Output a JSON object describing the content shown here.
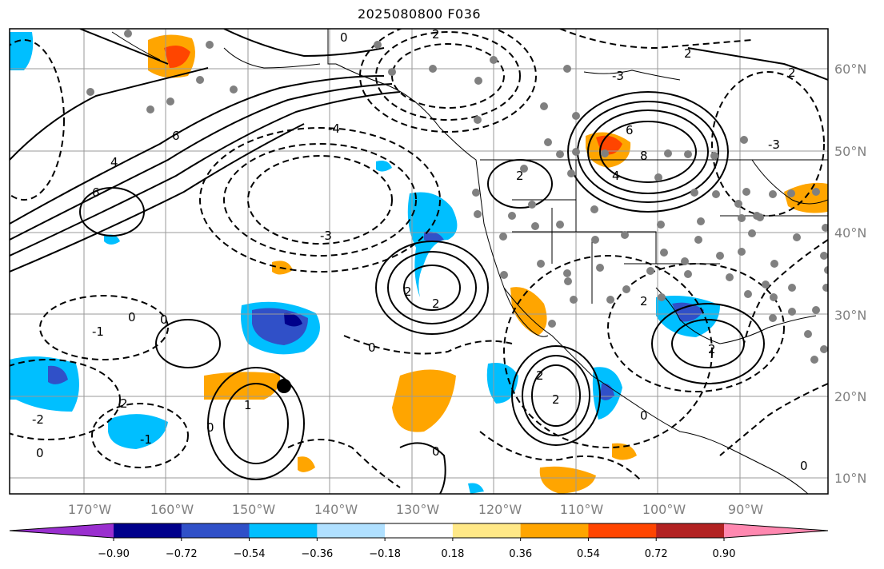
{
  "title": "2025080800 F036",
  "lon_labels": [
    "170°W",
    "160°W",
    "150°W",
    "140°W",
    "130°W",
    "120°W",
    "110°W",
    "100°W",
    "90°W"
  ],
  "lat_labels": [
    "60°N",
    "50°N",
    "40°N",
    "30°N",
    "20°N",
    "10°N"
  ],
  "colorbar": {
    "colors": [
      "#9a2fcf",
      "#00008b",
      "#3050c8",
      "#00bfff",
      "#b0e0ff",
      "#ffffff",
      "#ffe887",
      "#ffa500",
      "#ff4500",
      "#b22222",
      "#ff88b0"
    ],
    "ticks": [
      "−0.90",
      "−0.72",
      "−0.54",
      "−0.36",
      "−0.18",
      "0.18",
      "0.36",
      "0.54",
      "0.72",
      "0.90"
    ]
  },
  "colors": {
    "negative_light": "#00bfff",
    "negative_mid": "#3050c8",
    "negative_dark": "#00008b",
    "positive_light": "#ffa500",
    "positive_mid": "#ff4500",
    "station_dot": "#808080",
    "contour": "#000000"
  },
  "contour_labels": [
    "0",
    "2",
    "4",
    "6",
    "8",
    "-1",
    "-2",
    "-3",
    "-4",
    "1"
  ],
  "map": {
    "projection": "plate-carree",
    "lon_range": [
      -180,
      -80
    ],
    "lat_range": [
      8,
      66
    ],
    "marker": {
      "name": "black-dot",
      "lon": -145,
      "lat": 21
    }
  }
}
